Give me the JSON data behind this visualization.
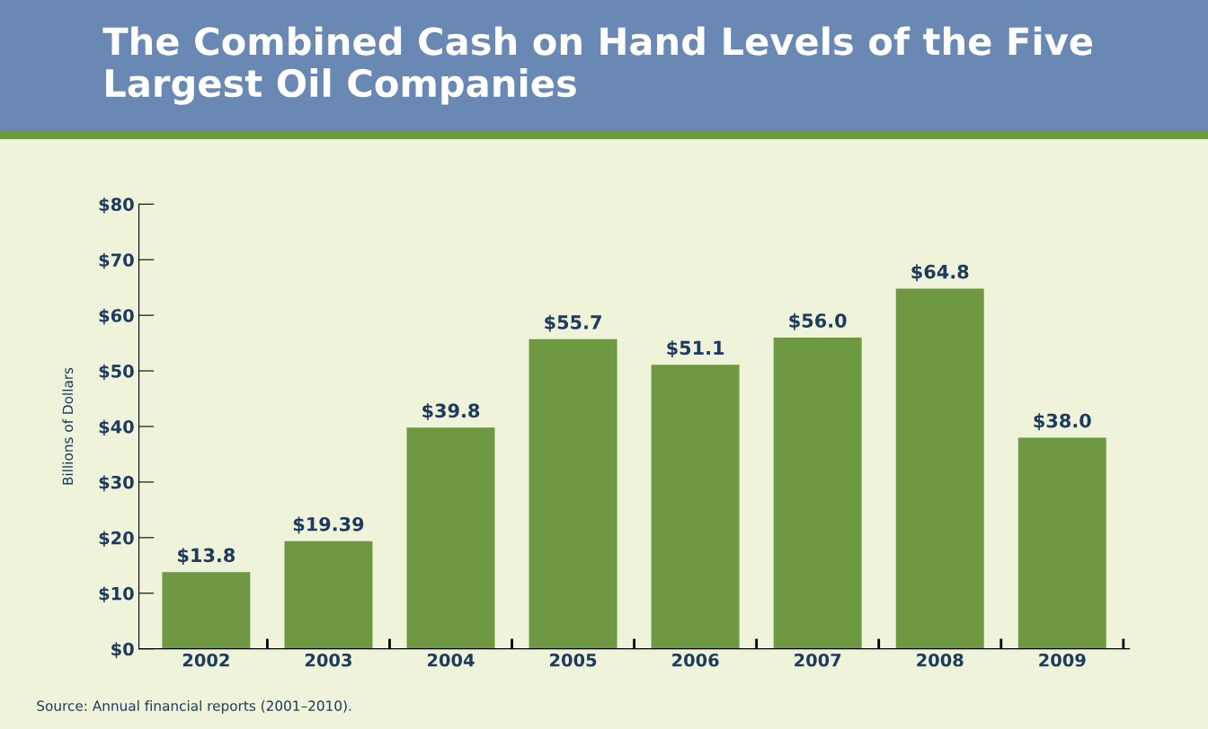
{
  "chart_data": {
    "type": "bar",
    "title": "The Combined Cash on Hand Levels of the Five Largest Oil Companies",
    "ylabel": "Billions of Dollars",
    "categories": [
      "2002",
      "2003",
      "2004",
      "2005",
      "2006",
      "2007",
      "2008",
      "2009"
    ],
    "values": [
      13.8,
      19.39,
      39.8,
      55.7,
      51.1,
      56.0,
      64.8,
      38.0
    ],
    "value_labels": [
      "$13.8",
      "$19.39",
      "$39.8",
      "$55.7",
      "$51.1",
      "$56.0",
      "$64.8",
      "$38.0"
    ],
    "color": "#6f9843",
    "ylim": [
      0,
      80
    ],
    "yticks": [
      {
        "value": 0,
        "label": "$0"
      },
      {
        "value": 10,
        "label": "$10"
      },
      {
        "value": 20,
        "label": "$20"
      },
      {
        "value": 30,
        "label": "$30"
      },
      {
        "value": 40,
        "label": "$40"
      },
      {
        "value": 50,
        "label": "$50"
      },
      {
        "value": 60,
        "label": "$60"
      },
      {
        "value": 70,
        "label": "$70"
      },
      {
        "value": 80,
        "label": "$80"
      }
    ],
    "grid": false,
    "legend": false,
    "annotations": [
      "Source: Annual financial reports (2001–2010)."
    ]
  }
}
